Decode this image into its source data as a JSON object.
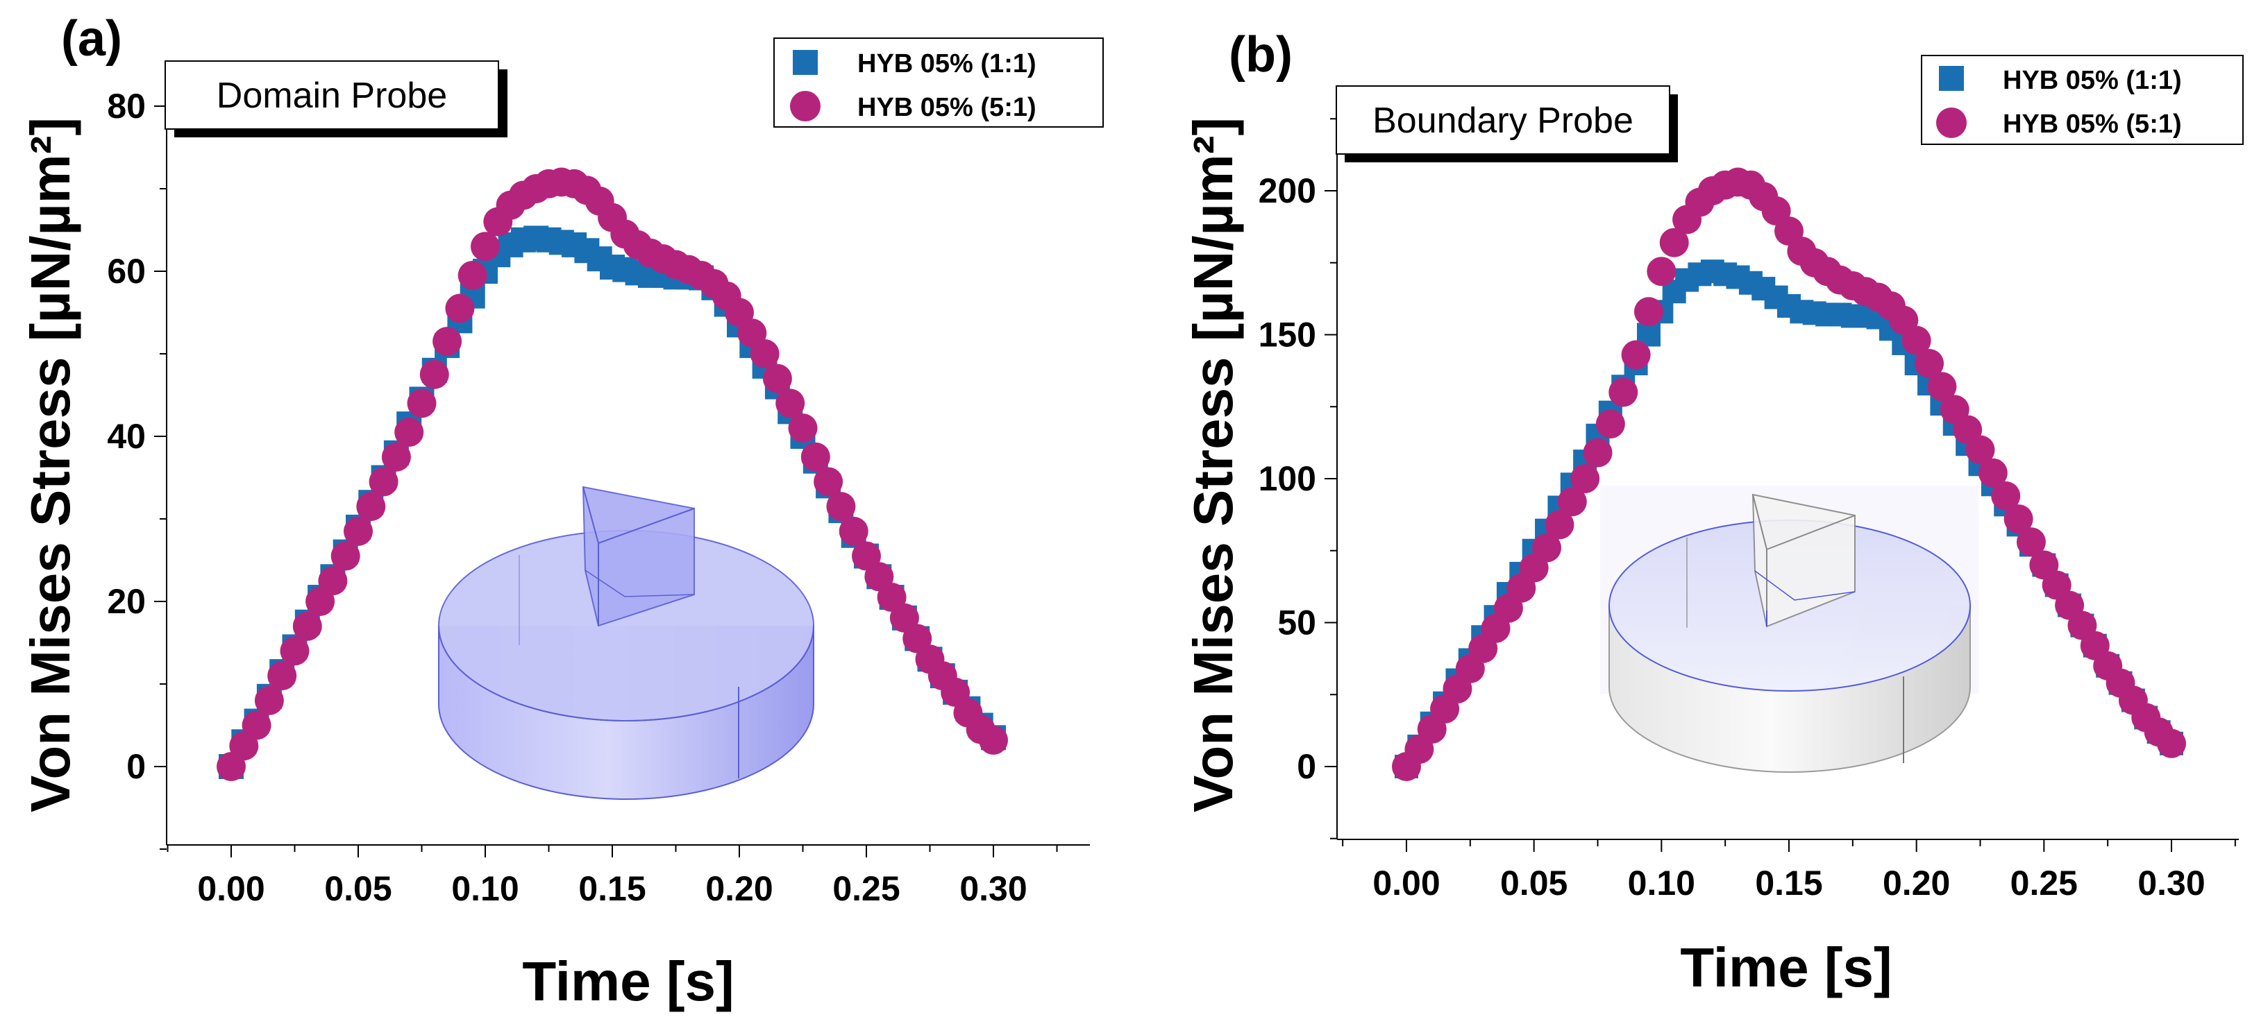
{
  "colors": {
    "series_1_1": "#1a6fb3",
    "series_5_1": "#b5247c",
    "cylinder_a": "#a7a9f6",
    "cylinder_edge": "#5a5fd6",
    "cylinder_b": "#d9d9d9"
  },
  "chart_data": [
    {
      "type": "scatter",
      "panel_label": "(a)",
      "probe_label": "Domain Probe",
      "xlabel": "Time [s]",
      "ylabel": "Von Mises Stress [µN/µm²]",
      "xlim": [
        -0.025,
        0.33
      ],
      "ylim": [
        -10,
        82
      ],
      "xticks": [
        0.0,
        0.05,
        0.1,
        0.15,
        0.2,
        0.25,
        0.3
      ],
      "xtick_labels": [
        "0.00",
        "0.05",
        "0.10",
        "0.15",
        "0.20",
        "0.25",
        "0.30"
      ],
      "yticks": [
        0,
        20,
        40,
        60,
        80
      ],
      "ytick_labels": [
        "0",
        "20",
        "40",
        "60",
        "80"
      ],
      "legend_position": "top-right",
      "legend": [
        "HYB 05% (1:1)",
        "HYB 05% (5:1)"
      ],
      "series": [
        {
          "name": "HYB 05% (1:1)",
          "marker": "square",
          "x": [
            0.0,
            0.005,
            0.01,
            0.015,
            0.02,
            0.025,
            0.03,
            0.035,
            0.04,
            0.045,
            0.05,
            0.055,
            0.06,
            0.065,
            0.07,
            0.075,
            0.08,
            0.085,
            0.09,
            0.095,
            0.1,
            0.105,
            0.11,
            0.115,
            0.12,
            0.125,
            0.13,
            0.135,
            0.14,
            0.145,
            0.15,
            0.155,
            0.16,
            0.165,
            0.17,
            0.175,
            0.18,
            0.185,
            0.19,
            0.195,
            0.2,
            0.205,
            0.21,
            0.215,
            0.22,
            0.225,
            0.23,
            0.235,
            0.24,
            0.245,
            0.25,
            0.255,
            0.26,
            0.265,
            0.27,
            0.275,
            0.28,
            0.285,
            0.29,
            0.295,
            0.3
          ],
          "y": [
            0,
            3,
            5.5,
            8.5,
            11.5,
            14.5,
            17.5,
            20.5,
            23,
            26,
            29,
            32,
            35,
            38,
            41.5,
            44.5,
            48,
            51,
            54,
            57,
            60,
            62,
            63.2,
            63.8,
            64,
            63.8,
            63.5,
            63.2,
            62.5,
            61.5,
            60.5,
            60.2,
            59.8,
            59.5,
            59.5,
            59.3,
            59.3,
            59.2,
            58,
            56,
            53.5,
            51,
            48.5,
            46,
            43,
            40,
            37,
            34,
            31,
            28,
            25.5,
            23,
            20.5,
            18,
            15.5,
            13,
            11,
            9,
            7,
            5,
            3.5
          ]
        },
        {
          "name": "HYB 05% (5:1)",
          "marker": "circle",
          "x": [
            0.0,
            0.005,
            0.01,
            0.015,
            0.02,
            0.025,
            0.03,
            0.035,
            0.04,
            0.045,
            0.05,
            0.055,
            0.06,
            0.065,
            0.07,
            0.075,
            0.08,
            0.085,
            0.09,
            0.095,
            0.1,
            0.105,
            0.11,
            0.115,
            0.12,
            0.125,
            0.13,
            0.135,
            0.14,
            0.145,
            0.15,
            0.155,
            0.16,
            0.165,
            0.17,
            0.175,
            0.18,
            0.185,
            0.19,
            0.195,
            0.2,
            0.205,
            0.21,
            0.215,
            0.22,
            0.225,
            0.23,
            0.235,
            0.24,
            0.245,
            0.25,
            0.255,
            0.26,
            0.265,
            0.27,
            0.275,
            0.28,
            0.285,
            0.29,
            0.295,
            0.3
          ],
          "y": [
            0,
            2.5,
            5,
            8,
            11,
            14,
            17,
            20,
            22.5,
            25.5,
            28.5,
            31.5,
            34.5,
            37.5,
            40.5,
            44,
            47.5,
            51.5,
            55.5,
            59.5,
            63,
            66,
            68,
            69.2,
            70,
            70.6,
            70.8,
            70.6,
            69.8,
            68.5,
            66.5,
            64.5,
            63.2,
            62.2,
            61.5,
            60.8,
            60.2,
            59.5,
            58.5,
            57,
            55,
            52.5,
            50,
            47,
            44,
            41,
            37.5,
            34.5,
            31.5,
            28.5,
            25.5,
            23,
            20.5,
            18,
            15.5,
            13,
            11,
            9,
            6.5,
            4.5,
            3.2
          ]
        }
      ]
    },
    {
      "type": "scatter",
      "panel_label": "(b)",
      "probe_label": "Boundary Probe",
      "xlabel": "Time [s]",
      "ylabel": "Von Mises Stress [µN/µm²]",
      "xlim": [
        -0.025,
        0.325
      ],
      "ylim": [
        -25,
        228
      ],
      "xticks": [
        0.0,
        0.05,
        0.1,
        0.15,
        0.2,
        0.25,
        0.3
      ],
      "xtick_labels": [
        "0.00",
        "0.05",
        "0.10",
        "0.15",
        "0.20",
        "0.25",
        "0.30"
      ],
      "yticks": [
        0,
        50,
        100,
        150,
        200
      ],
      "ytick_labels": [
        "0",
        "50",
        "100",
        "150",
        "200"
      ],
      "legend_position": "top-right",
      "legend": [
        "HYB 05% (1:1)",
        "HYB 05% (5:1)"
      ],
      "series": [
        {
          "name": "HYB 05% (1:1)",
          "marker": "square",
          "x": [
            0.0,
            0.005,
            0.01,
            0.015,
            0.02,
            0.025,
            0.03,
            0.035,
            0.04,
            0.045,
            0.05,
            0.055,
            0.06,
            0.065,
            0.07,
            0.075,
            0.08,
            0.085,
            0.09,
            0.095,
            0.1,
            0.105,
            0.11,
            0.115,
            0.12,
            0.125,
            0.13,
            0.135,
            0.14,
            0.145,
            0.15,
            0.155,
            0.16,
            0.165,
            0.17,
            0.175,
            0.18,
            0.185,
            0.19,
            0.195,
            0.2,
            0.205,
            0.21,
            0.215,
            0.22,
            0.225,
            0.23,
            0.235,
            0.24,
            0.245,
            0.25,
            0.255,
            0.26,
            0.265,
            0.27,
            0.275,
            0.28,
            0.285,
            0.29,
            0.295,
            0.3
          ],
          "y": [
            0,
            7,
            15,
            22,
            30,
            37,
            45,
            52,
            60,
            67,
            75,
            82,
            90,
            98,
            106,
            115,
            123,
            132,
            140,
            150,
            158,
            165,
            169,
            171,
            172,
            171,
            170,
            168,
            166,
            163,
            160,
            158,
            157.5,
            157,
            157,
            156.5,
            156.5,
            156,
            152,
            147,
            140,
            133,
            126,
            119,
            112,
            105,
            98,
            91,
            84,
            77,
            70,
            63,
            56,
            49,
            42,
            35,
            29,
            23,
            17,
            12,
            8
          ]
        },
        {
          "name": "HYB 05% (5:1)",
          "marker": "circle",
          "x": [
            0.0,
            0.005,
            0.01,
            0.015,
            0.02,
            0.025,
            0.03,
            0.035,
            0.04,
            0.045,
            0.05,
            0.055,
            0.06,
            0.065,
            0.07,
            0.075,
            0.08,
            0.085,
            0.09,
            0.095,
            0.1,
            0.105,
            0.11,
            0.115,
            0.12,
            0.125,
            0.13,
            0.135,
            0.14,
            0.145,
            0.15,
            0.155,
            0.16,
            0.165,
            0.17,
            0.175,
            0.18,
            0.185,
            0.19,
            0.195,
            0.2,
            0.205,
            0.21,
            0.215,
            0.22,
            0.225,
            0.23,
            0.235,
            0.24,
            0.245,
            0.25,
            0.255,
            0.26,
            0.265,
            0.27,
            0.275,
            0.28,
            0.285,
            0.29,
            0.295,
            0.3
          ],
          "y": [
            0,
            6,
            13,
            20,
            27,
            34,
            41,
            48,
            55,
            62,
            69,
            76,
            84,
            92,
            100,
            109,
            119,
            130,
            143,
            158,
            172,
            182,
            190,
            196,
            200,
            202,
            203,
            202,
            198,
            193,
            186,
            179,
            175,
            172,
            169,
            167,
            165,
            163,
            160,
            155,
            148,
            140,
            132,
            124,
            117,
            110,
            102,
            94,
            86,
            78,
            70,
            63,
            56,
            49,
            42,
            35,
            29,
            23,
            17,
            12,
            8
          ]
        }
      ]
    }
  ]
}
